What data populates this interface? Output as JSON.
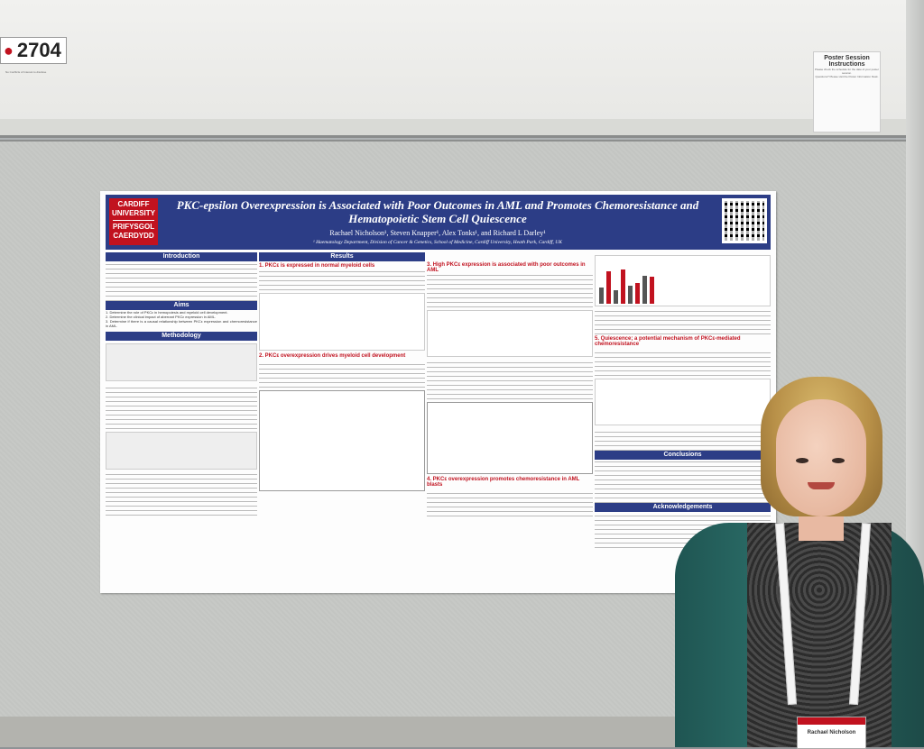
{
  "board": {
    "number": "2704",
    "tiny_notes": "No Conflicts of Interest to disclose"
  },
  "instructions": {
    "title": "Poster Session Instructions",
    "line1": "Please check the schedule for the date of your poster session.",
    "line2": "Questions? Please visit the Poster Information Desk."
  },
  "poster": {
    "logo_line1": "CARDIFF",
    "logo_line2": "UNIVERSITY",
    "logo_line3": "PRIFYSGOL",
    "logo_line4": "CAERDYDD",
    "title": "PKC-epsilon Overexpression is Associated with Poor Outcomes in AML and Promotes Chemoresistance and Hematopoietic Stem Cell Quiescence",
    "authors": "Rachael Nicholson¹, Steven Knapper¹, Alex Tonks¹, and Richard L Darley¹",
    "affiliation": "¹ Haematology Department, Division of Cancer & Genetics, School of Medicine, Cardiff University, Heath Park, Cardiff, UK",
    "sections": {
      "introduction": "Introduction",
      "aims": "Aims",
      "methodology": "Methodology",
      "results": "Results",
      "conclusions": "Conclusions",
      "acknowledgements": "Acknowledgements"
    },
    "subsections": {
      "r1": "1. PKCε is expressed in normal myeloid cells",
      "r2": "2. PKCε overexpression drives myeloid cell development",
      "r3": "3. High PKCε expression is associated with poor outcomes in AML",
      "r4": "4. PKCε overexpression promotes chemoresistance in AML blasts",
      "r5": "5. Quiescence; a potential mechanism of PKCε-mediated chemoresistance"
    },
    "aims": [
      "1. Determine the role of PKCε in hemopoiesis and myeloid cell development.",
      "2. Determine the clinical impact of aberrant PKCε expression in AML.",
      "3. Determine if there is a causal relationship between PKCε expression and chemoresistance in AML."
    ]
  },
  "person": {
    "badge_name": "Rachael Nicholson"
  }
}
